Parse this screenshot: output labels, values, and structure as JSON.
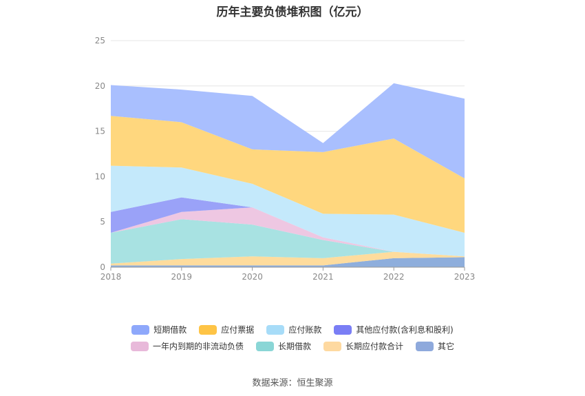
{
  "title": "历年主要负债堆积图（亿元）",
  "source": "数据来源：恒生聚源",
  "chart_data": {
    "type": "area",
    "stacked": true,
    "categories": [
      "2018",
      "2019",
      "2020",
      "2021",
      "2022",
      "2023"
    ],
    "ylim": [
      0,
      25
    ],
    "yticks": [
      0,
      5,
      10,
      15,
      20,
      25
    ],
    "grid": true,
    "legend_position": "bottom",
    "series": [
      {
        "name": "其它",
        "color": "#8eaedc",
        "values": [
          0.2,
          0.2,
          0.2,
          0.2,
          1.0,
          1.1
        ]
      },
      {
        "name": "长期应付款合计",
        "color": "#fedc9d",
        "values": [
          0.2,
          0.7,
          1.0,
          0.8,
          0.7,
          0.1
        ]
      },
      {
        "name": "长期借款",
        "color": "#a8e2e2",
        "values": [
          3.4,
          4.4,
          3.5,
          2.0,
          0.0,
          0.0
        ]
      },
      {
        "name": "一年内到期的非流动负债",
        "color": "#eec7e2",
        "values": [
          0.0,
          0.8,
          1.9,
          0.3,
          0.0,
          0.0
        ]
      },
      {
        "name": "其他应付款(含利息和股利)",
        "color": "#9aa2f8",
        "values": [
          2.3,
          1.6,
          0.0,
          0.0,
          0.0,
          0.0
        ]
      },
      {
        "name": "应付账款",
        "color": "#c4e9fb",
        "values": [
          5.1,
          3.3,
          2.6,
          2.6,
          4.1,
          2.6
        ]
      },
      {
        "name": "应付票据",
        "color": "#ffd77e",
        "values": [
          5.5,
          5.0,
          3.8,
          6.8,
          8.4,
          6.0
        ]
      },
      {
        "name": "短期借款",
        "color": "#a9bffe",
        "values": [
          3.4,
          3.6,
          5.9,
          1.0,
          6.1,
          8.8
        ]
      }
    ]
  },
  "legend": {
    "row1": [
      {
        "label": "短期借款",
        "color": "#8ea8fb"
      },
      {
        "label": "应付票据",
        "color": "#fec446"
      },
      {
        "label": "应付账款",
        "color": "#a7dcf8"
      },
      {
        "label": "其他应付款(含利息和股利)",
        "color": "#7a7ef5"
      }
    ],
    "row2": [
      {
        "label": "一年内到期的非流动负债",
        "color": "#e8b9da"
      },
      {
        "label": "长期借款",
        "color": "#8ad6d6"
      },
      {
        "label": "长期应付款合计",
        "color": "#fed9a0"
      },
      {
        "label": "其它",
        "color": "#8ea9dc"
      }
    ]
  }
}
